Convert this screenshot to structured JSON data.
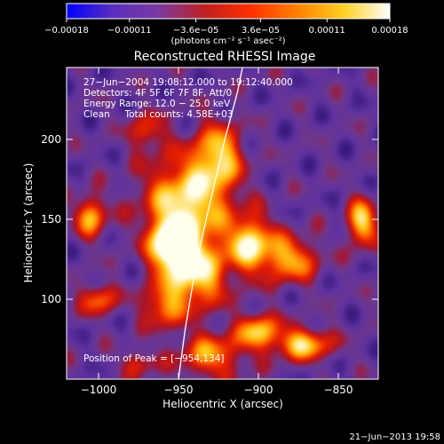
{
  "chart_data": {
    "type": "heatmap",
    "title": "Reconstructed RHESSI Image",
    "xlabel": "Heliocentric X (arcsec)",
    "ylabel": "Heliocentric Y (arcsec)",
    "xlim": [
      -1020,
      -825
    ],
    "ylim": [
      50,
      245
    ],
    "x_ticks": [
      -1000,
      -950,
      -900,
      -850
    ],
    "x_tick_labels": [
      "−1000",
      "−950",
      "−900",
      "−850"
    ],
    "y_ticks": [
      100,
      150,
      200
    ],
    "y_tick_labels": [
      "100",
      "150",
      "200"
    ],
    "colorbar": {
      "range": [
        -0.00018,
        0.00018
      ],
      "ticks": [
        -0.00018,
        -0.00011,
        -3.6e-05,
        3.6e-05,
        0.00011,
        0.00018
      ],
      "tick_labels": [
        "−0.00018",
        "−0.00011",
        "−3.6e−05",
        "3.6e−05",
        "0.00011",
        "0.00018"
      ],
      "unit_label": "(photons cm⁻² s⁻¹ asec⁻²)",
      "colors": [
        "#0000ff",
        "#5a2fbf",
        "#7a3aa0",
        "#c02020",
        "#ff3000",
        "#ff8000",
        "#ffd020",
        "#ffffff"
      ]
    },
    "annotations": {
      "time_range": "27−Jun−2004 19:08:12.000 to 19:12:40.000",
      "detectors": "Detectors: 4F 5F 6F 7F 8F, Att/0",
      "energy": "Energy Range: 12.0 − 25.0 keV",
      "clean": "Clean     Total counts: 4.58E+03",
      "peak": "Position of Peak = [−954,134]"
    },
    "peak": {
      "x": -954,
      "y": 134
    },
    "limb_curve": [
      [
        -950,
        50
      ],
      [
        -946,
        80
      ],
      [
        -941,
        110
      ],
      [
        -935,
        140
      ],
      [
        -928,
        170
      ],
      [
        -921,
        200
      ],
      [
        -913,
        230
      ],
      [
        -910,
        245
      ]
    ],
    "sources": [
      {
        "x": -953,
        "y": 134,
        "sx": 9,
        "sy": 10,
        "a": 1.0
      },
      {
        "x": -945,
        "y": 160,
        "sx": 18,
        "sy": 20,
        "a": 0.75
      },
      {
        "x": -940,
        "y": 115,
        "sx": 14,
        "sy": 14,
        "a": 0.7
      },
      {
        "x": -925,
        "y": 190,
        "sx": 10,
        "sy": 14,
        "a": 0.6
      },
      {
        "x": -905,
        "y": 135,
        "sx": 10,
        "sy": 12,
        "a": 0.7
      },
      {
        "x": -880,
        "y": 125,
        "sx": 12,
        "sy": 10,
        "a": 0.55
      },
      {
        "x": -900,
        "y": 80,
        "sx": 9,
        "sy": 8,
        "a": 0.6
      },
      {
        "x": -872,
        "y": 72,
        "sx": 12,
        "sy": 7,
        "a": 0.65
      },
      {
        "x": -1005,
        "y": 152,
        "sx": 7,
        "sy": 9,
        "a": 0.55
      },
      {
        "x": -1000,
        "y": 100,
        "sx": 8,
        "sy": 7,
        "a": 0.45
      },
      {
        "x": -970,
        "y": 205,
        "sx": 8,
        "sy": 8,
        "a": 0.35
      },
      {
        "x": -835,
        "y": 148,
        "sx": 6,
        "sy": 10,
        "a": 0.7
      },
      {
        "x": -930,
        "y": 65,
        "sx": 14,
        "sy": 10,
        "a": 0.5
      },
      {
        "x": -960,
        "y": 95,
        "sx": 9,
        "sy": 9,
        "a": 0.45
      },
      {
        "x": -975,
        "y": 60,
        "sx": 8,
        "sy": 6,
        "a": 0.3
      }
    ]
  },
  "footer_timestamp": "21−Jun−2013 19:58"
}
